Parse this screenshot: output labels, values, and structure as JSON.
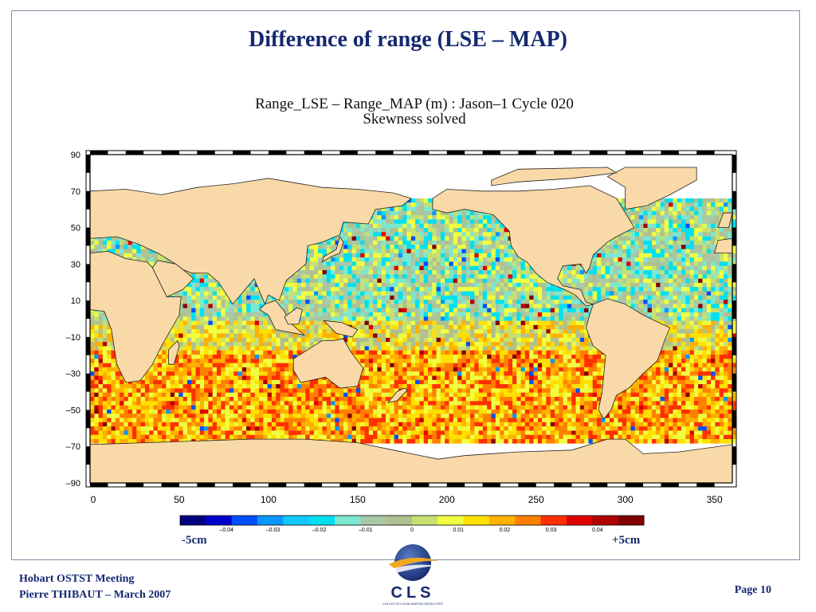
{
  "slide": {
    "title": "Difference of range (LSE – MAP)",
    "footer_line1": "Hobart OSTST Meeting",
    "footer_line2": "Pierre THIBAUT – March 2007",
    "page": "Page 10",
    "logo_text": "CLS",
    "logo_subtext": "COLLECTE LOCALISATION SATELLITES"
  },
  "figure": {
    "title_line1": "Range_LSE – Range_MAP (m) : Jason–1 Cycle 020",
    "title_line2": "Skewness solved"
  },
  "map_data": {
    "type": "heatmap",
    "projection": "equirectangular",
    "lon_range": [
      0,
      360
    ],
    "lat_range": [
      -90,
      90
    ],
    "lon_ticks": [
      0,
      50,
      100,
      150,
      200,
      250,
      300,
      350
    ],
    "lat_ticks": [
      90,
      70,
      50,
      30,
      10,
      -10,
      -30,
      -50,
      -70,
      -90
    ],
    "lat_tick_labels": [
      "90",
      "70",
      "50",
      "30",
      "10",
      "–10",
      "–30",
      "–50",
      "–70",
      "–90"
    ],
    "data_lat_coverage": [
      -66,
      66
    ],
    "land_color": "#fad9a8",
    "ocean_no_data_color": "#ffffff"
  },
  "colorbar": {
    "min_label": "-5cm",
    "max_label": "+5cm",
    "tick_values": [
      "–0.04",
      "–0.03",
      "–0.02",
      "–0.01",
      "0",
      "0.01",
      "0.02",
      "0.03",
      "0.04"
    ],
    "colors": [
      "#000080",
      "#0000cd",
      "#0050ff",
      "#0a96ff",
      "#12c8ff",
      "#00e0f0",
      "#7ce8d0",
      "#a8c8a8",
      "#b0c090",
      "#c8e070",
      "#f0ff40",
      "#ffe000",
      "#ffb000",
      "#ff8000",
      "#ff3000",
      "#e00000",
      "#b00000",
      "#800000"
    ]
  }
}
